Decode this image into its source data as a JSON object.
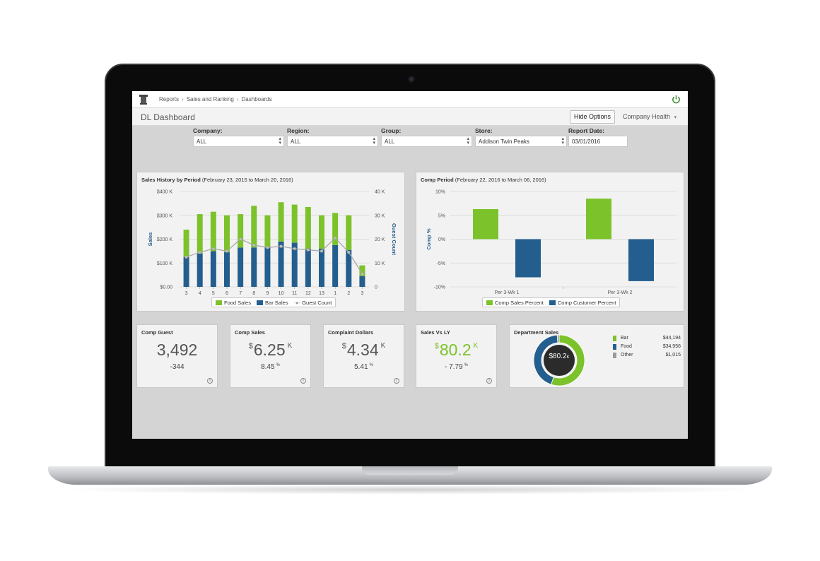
{
  "breadcrumb": [
    "Reports",
    "Sales and Ranking",
    "Dashboards"
  ],
  "page": {
    "title": "DL Dashboard",
    "hide_options": "Hide Options",
    "company_health": "Company Health",
    "dropdown_caret": "▾"
  },
  "filters": [
    {
      "label": "Company:",
      "value": "ALL"
    },
    {
      "label": "Region:",
      "value": "ALL"
    },
    {
      "label": "Group:",
      "value": "ALL"
    },
    {
      "label": "Store:",
      "value": "Addison Twin Peaks"
    },
    {
      "label": "Report Date:",
      "value": "03/01/2016"
    }
  ],
  "colors": {
    "green": "#7cc22a",
    "blue": "#245e8e",
    "line": "#a9a9a9",
    "other": "#9a9a9a"
  },
  "sales_history": {
    "title": "Sales History by Period",
    "subtitle": "(February 23, 2015 to March 20, 2016)",
    "ylabel_left": "Sales",
    "ylabel_right": "Guest Count",
    "legend": [
      "Food Sales",
      "Bar Sales",
      "Guest Count"
    ]
  },
  "comp_period": {
    "title": "Comp Period",
    "subtitle": "(February 22, 2016 to March 06, 2016)",
    "ylabel": "Comp %",
    "legend": [
      "Comp Sales Percent",
      "Comp Customer Percent"
    ]
  },
  "kpis": {
    "comp_guest": {
      "title": "Comp Guest",
      "value": "3,492",
      "sub": "-344"
    },
    "comp_sales": {
      "title": "Comp Sales",
      "currency": "$",
      "value": "6.25",
      "unit": "K",
      "sub": "8.45",
      "pct": "%"
    },
    "complaint": {
      "title": "Complaint Dollars",
      "currency": "$",
      "value": "4.34",
      "unit": "K",
      "sub": "5.41",
      "pct": "%"
    },
    "sales_vs_ly": {
      "title": "Sales Vs LY",
      "currency": "$",
      "value": "80.2",
      "unit": "K",
      "sub": "- 7.79",
      "pct": "%"
    }
  },
  "department": {
    "title": "Department Sales",
    "center": "$80.2",
    "center_unit": "K",
    "items": [
      {
        "name": "Bar",
        "value": "$44,194"
      },
      {
        "name": "Food",
        "value": "$34,956"
      },
      {
        "name": "Other",
        "value": "$1,015"
      }
    ]
  },
  "chart_data": [
    {
      "type": "bar",
      "stacked": true,
      "title": "Sales History by Period",
      "categories": [
        "3",
        "4",
        "5",
        "6",
        "7",
        "8",
        "9",
        "10",
        "11",
        "12",
        "13",
        "1",
        "2",
        "3"
      ],
      "series": [
        {
          "name": "Bar Sales",
          "values": [
            125,
            140,
            150,
            145,
            165,
            165,
            165,
            190,
            185,
            160,
            160,
            175,
            155,
            45
          ]
        },
        {
          "name": "Food Sales",
          "values": [
            115,
            165,
            165,
            155,
            140,
            175,
            135,
            165,
            160,
            175,
            140,
            135,
            145,
            45
          ]
        },
        {
          "name": "Guest Count",
          "axis": "right",
          "values": [
            12.5,
            14.5,
            16,
            15,
            20,
            17.5,
            16.5,
            17,
            16,
            15.5,
            15,
            20.5,
            14.5,
            5.5
          ]
        }
      ],
      "ylim": [
        0,
        400
      ],
      "yticks": [
        "$0.00",
        "$100 K",
        "$200 K",
        "$300 K",
        "$400 K"
      ],
      "y2lim": [
        0,
        40
      ],
      "y2ticks": [
        "0",
        "10 K",
        "20 K",
        "30 K",
        "40 K"
      ],
      "ylabel": "Sales",
      "y2label": "Guest Count",
      "grid": true,
      "legend": "bottom"
    },
    {
      "type": "bar",
      "title": "Comp Period",
      "categories": [
        "Per 3-Wk 1",
        "Per 3-Wk 2"
      ],
      "series": [
        {
          "name": "Comp Sales Percent",
          "values": [
            6.3,
            8.5
          ]
        },
        {
          "name": "Comp Customer Percent",
          "values": [
            -8.0,
            -8.8
          ]
        }
      ],
      "ylim": [
        -10,
        10
      ],
      "yticks": [
        "-10%",
        "-5%",
        "0%",
        "5%",
        "10%"
      ],
      "ylabel": "Comp %",
      "grid": true,
      "legend": "bottom"
    },
    {
      "type": "pie",
      "title": "Department Sales",
      "labels": [
        "Bar",
        "Food",
        "Other"
      ],
      "values": [
        44194,
        34956,
        1015
      ]
    }
  ]
}
